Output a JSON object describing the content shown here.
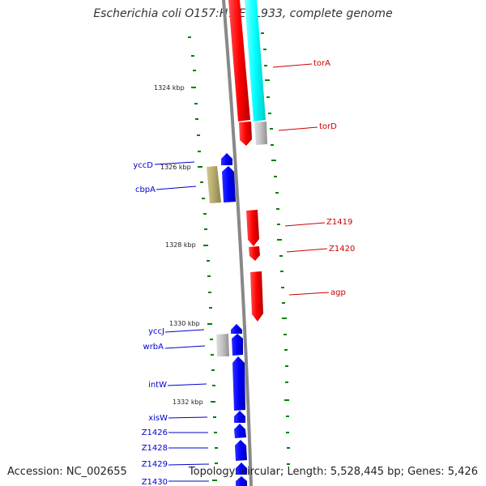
{
  "title": "Escherichia coli O157:H7 EDL933, complete genome",
  "footer": {
    "accession": "Accession: NC_002655",
    "summary": "Topology: circular; Length: 5,528,445 bp; Genes: 5,426"
  },
  "colors": {
    "forward_gene": "#ff0000",
    "reverse_gene": "#0000ff",
    "cds_cyan": "#00ffff",
    "rna_grey": "#c0c0c0",
    "olive_feature": "#b3a96a",
    "tick_green": "#008000",
    "backbone": "#888888",
    "label_blue": "#0000cc",
    "label_red": "#cc0000"
  },
  "scale_labels": [
    "1324 kbp",
    "1326 kbp",
    "1328 kbp",
    "1330 kbp",
    "1332 kbp"
  ],
  "genes": [
    {
      "name": "torA",
      "strand": "forward"
    },
    {
      "name": "torD",
      "strand": "forward"
    },
    {
      "name": "Z1419",
      "strand": "forward"
    },
    {
      "name": "Z1420",
      "strand": "forward"
    },
    {
      "name": "agp",
      "strand": "forward"
    },
    {
      "name": "yccD",
      "strand": "reverse"
    },
    {
      "name": "cbpA",
      "strand": "reverse"
    },
    {
      "name": "yccJ",
      "strand": "reverse"
    },
    {
      "name": "wrbA",
      "strand": "reverse"
    },
    {
      "name": "intW",
      "strand": "reverse"
    },
    {
      "name": "xisW",
      "strand": "reverse"
    },
    {
      "name": "Z1426",
      "strand": "reverse"
    },
    {
      "name": "Z1428",
      "strand": "reverse"
    },
    {
      "name": "Z1429",
      "strand": "reverse"
    },
    {
      "name": "Z1430",
      "strand": "reverse"
    }
  ]
}
